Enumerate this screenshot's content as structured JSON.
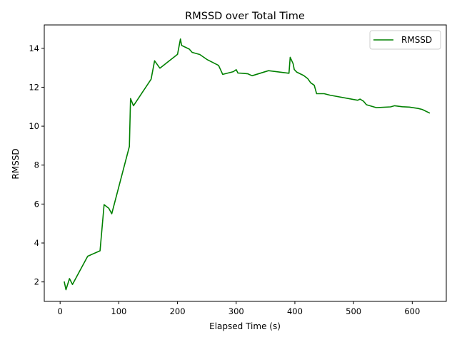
{
  "chart_data": {
    "type": "line",
    "title": "RMSSD over Total Time",
    "xlabel": "Elapsed Time (s)",
    "ylabel": "RMSSD",
    "xlim": [
      -27,
      658
    ],
    "ylim": [
      1.0,
      15.2
    ],
    "xticks": [
      0,
      100,
      200,
      300,
      400,
      500,
      600
    ],
    "yticks": [
      2,
      4,
      6,
      8,
      10,
      12,
      14
    ],
    "grid": false,
    "legend_position": "top-right",
    "series": [
      {
        "name": "RMSSD",
        "color": "#008000",
        "x": [
          7,
          10,
          16,
          21,
          47,
          68,
          75,
          83,
          88,
          118,
          120,
          125,
          155,
          161,
          170,
          200,
          205,
          207,
          220,
          225,
          238,
          250,
          270,
          277,
          295,
          300,
          303,
          310,
          320,
          327,
          355,
          390,
          392,
          397,
          399,
          403,
          415,
          422,
          427,
          433,
          437,
          450,
          460,
          507,
          511,
          517,
          522,
          539,
          563,
          570,
          583,
          595,
          610,
          617,
          630
        ],
        "y": [
          2.02,
          1.6,
          2.17,
          1.87,
          3.32,
          3.6,
          5.97,
          5.78,
          5.5,
          8.96,
          11.42,
          11.05,
          12.41,
          13.36,
          12.98,
          13.69,
          14.48,
          14.15,
          13.96,
          13.79,
          13.68,
          13.43,
          13.12,
          12.66,
          12.8,
          12.9,
          12.73,
          12.72,
          12.69,
          12.59,
          12.85,
          12.72,
          13.54,
          13.21,
          12.91,
          12.78,
          12.6,
          12.44,
          12.23,
          12.1,
          11.67,
          11.67,
          11.59,
          11.33,
          11.39,
          11.28,
          11.1,
          10.95,
          10.99,
          11.05,
          11.0,
          10.98,
          10.91,
          10.86,
          10.67
        ]
      }
    ]
  }
}
